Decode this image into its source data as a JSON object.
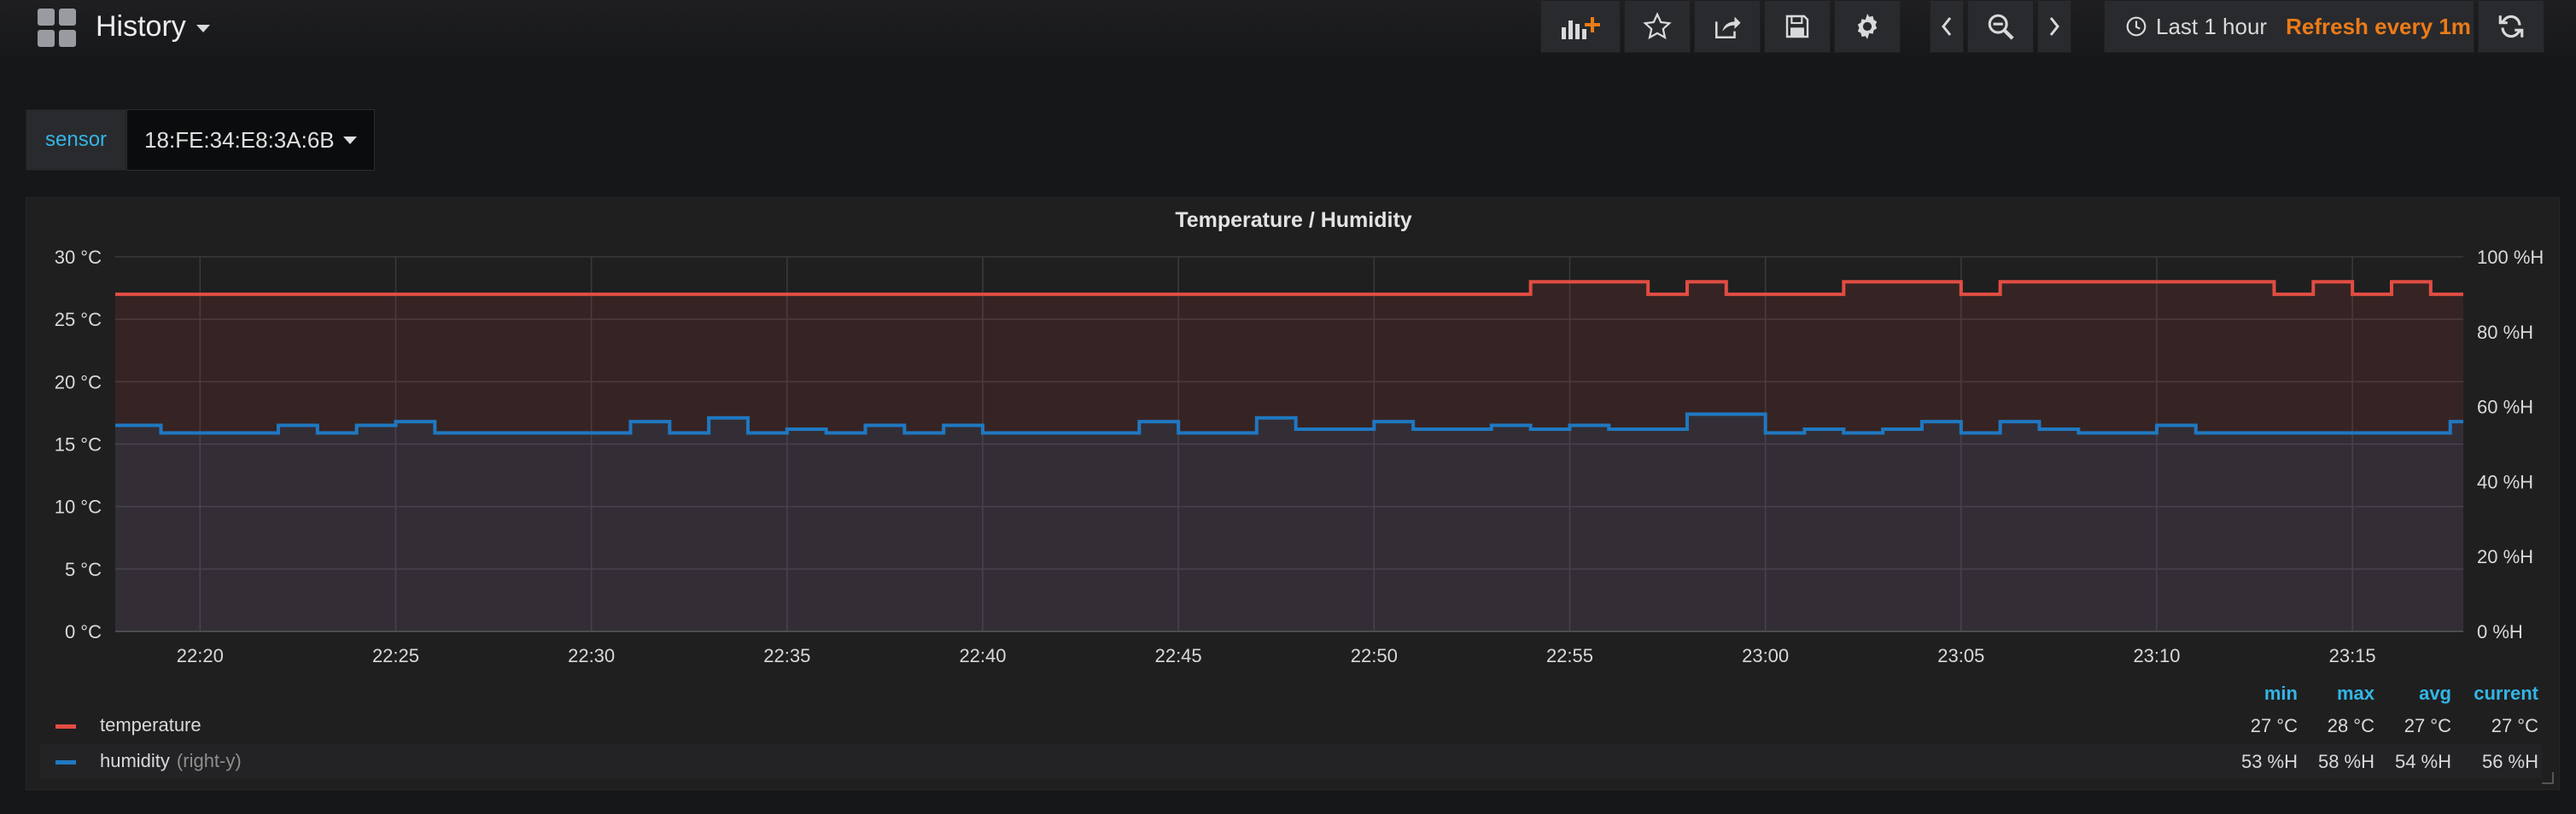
{
  "header": {
    "title": "History"
  },
  "toolbar": {
    "add_panel_icon": "bar-chart-plus-icon",
    "star_icon": "star-icon",
    "share_icon": "share-icon",
    "save_icon": "save-icon",
    "settings_icon": "gear-icon",
    "time_range": "Last 1 hour",
    "refresh": "Refresh every 1m"
  },
  "variable": {
    "label": "sensor",
    "value": "18:FE:34:E8:3A:6B"
  },
  "panel": {
    "title": "Temperature / Humidity"
  },
  "colors": {
    "temperature": "#e24d42",
    "humidity": "#1f78c1",
    "accent": "#33b5e5",
    "refresh": "#eb7b18"
  },
  "legend": {
    "headers": [
      "min",
      "max",
      "avg",
      "current"
    ],
    "rows": [
      {
        "name": "temperature",
        "extra": "",
        "min": "27 °C",
        "max": "28 °C",
        "avg": "27 °C",
        "current": "27 °C"
      },
      {
        "name": "humidity",
        "extra": "(right-y)",
        "min": "53 %H",
        "max": "58 %H",
        "avg": "54 %H",
        "current": "56 %H"
      }
    ]
  },
  "chart_data": {
    "type": "line",
    "title": "Temperature / Humidity",
    "x_start": "22:17:50",
    "x_end": "23:17:50",
    "x_ticks": [
      "22:20",
      "22:25",
      "22:30",
      "22:35",
      "22:40",
      "22:45",
      "22:50",
      "22:55",
      "23:00",
      "23:05",
      "23:10",
      "23:15"
    ],
    "y_left": {
      "ticks": [
        "0 °C",
        "5 °C",
        "10 °C",
        "15 °C",
        "20 °C",
        "25 °C",
        "30 °C"
      ],
      "range": [
        0,
        30
      ],
      "unit": "°C"
    },
    "y_right": {
      "ticks": [
        "0 %H",
        "20 %H",
        "40 %H",
        "60 %H",
        "80 %H",
        "100 %H"
      ],
      "range": [
        0,
        100
      ],
      "unit": "%H"
    },
    "grid": true,
    "legend_placement": "bottom",
    "series": [
      {
        "name": "temperature",
        "axis": "left",
        "step": true,
        "fill": true,
        "points": [
          [
            "22:17:50",
            27
          ],
          [
            "22:54:00",
            28
          ],
          [
            "22:57:00",
            27
          ],
          [
            "22:58:00",
            28
          ],
          [
            "22:59:00",
            27
          ],
          [
            "23:02:00",
            28
          ],
          [
            "23:05:00",
            27
          ],
          [
            "23:06:00",
            28
          ],
          [
            "23:13:00",
            27
          ],
          [
            "23:14:00",
            28
          ],
          [
            "23:15:00",
            27
          ],
          [
            "23:16:00",
            28
          ],
          [
            "23:17:00",
            27
          ],
          [
            "23:17:50",
            27
          ]
        ]
      },
      {
        "name": "humidity",
        "axis": "right",
        "step": true,
        "fill": true,
        "points": [
          [
            "22:17:50",
            55
          ],
          [
            "22:19:00",
            53
          ],
          [
            "22:22:00",
            55
          ],
          [
            "22:23:00",
            53
          ],
          [
            "22:24:00",
            55
          ],
          [
            "22:25:00",
            56
          ],
          [
            "22:26:00",
            53
          ],
          [
            "22:31:00",
            56
          ],
          [
            "22:32:00",
            53
          ],
          [
            "22:33:00",
            57
          ],
          [
            "22:34:00",
            53
          ],
          [
            "22:35:00",
            54
          ],
          [
            "22:36:00",
            53
          ],
          [
            "22:37:00",
            55
          ],
          [
            "22:38:00",
            53
          ],
          [
            "22:39:00",
            55
          ],
          [
            "22:40:00",
            53
          ],
          [
            "22:44:00",
            56
          ],
          [
            "22:45:00",
            53
          ],
          [
            "22:47:00",
            57
          ],
          [
            "22:48:00",
            54
          ],
          [
            "22:50:00",
            56
          ],
          [
            "22:51:00",
            54
          ],
          [
            "22:53:00",
            55
          ],
          [
            "22:54:00",
            54
          ],
          [
            "22:55:00",
            55
          ],
          [
            "22:56:00",
            54
          ],
          [
            "22:58:00",
            58
          ],
          [
            "23:00:00",
            53
          ],
          [
            "23:01:00",
            54
          ],
          [
            "23:02:00",
            53
          ],
          [
            "23:03:00",
            54
          ],
          [
            "23:04:00",
            56
          ],
          [
            "23:05:00",
            53
          ],
          [
            "23:06:00",
            56
          ],
          [
            "23:07:00",
            54
          ],
          [
            "23:08:00",
            53
          ],
          [
            "23:10:00",
            55
          ],
          [
            "23:11:00",
            53
          ],
          [
            "23:17:30",
            56
          ],
          [
            "23:17:50",
            56
          ]
        ]
      }
    ]
  }
}
